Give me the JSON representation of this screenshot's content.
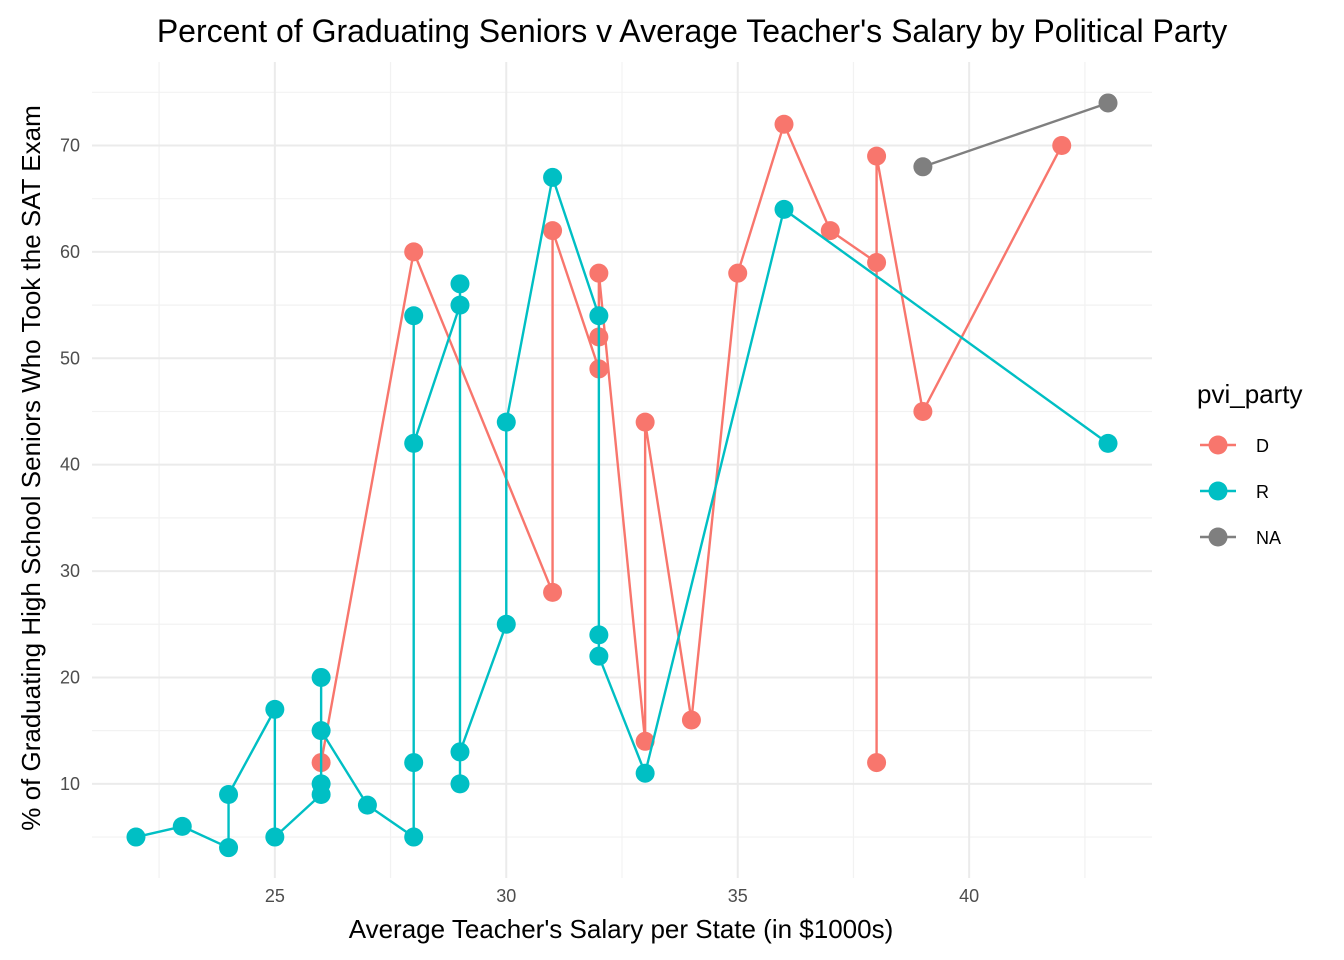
{
  "chart_data": {
    "type": "line",
    "title": "Percent of Graduating Seniors v Average Teacher's Salary by Political Party",
    "xlabel": "Average Teacher's Salary per State (in $1000s)",
    "ylabel": "% of Graduating High School Seniors Who Took the SAT Exam",
    "xlim": [
      21.05,
      43.95
    ],
    "ylim": [
      1.15,
      77.85
    ],
    "x_ticks": [
      25,
      30,
      35,
      40
    ],
    "y_ticks": [
      10,
      20,
      30,
      40,
      50,
      60,
      70
    ],
    "grid": true,
    "markers": true,
    "legend": {
      "title": "pvi_party",
      "position": "right"
    },
    "series": [
      {
        "name": "D",
        "color": "#F8766D",
        "points": [
          [
            26,
            12
          ],
          [
            28,
            60
          ],
          [
            31,
            28
          ],
          [
            31,
            62
          ],
          [
            32,
            49
          ],
          [
            32,
            52
          ],
          [
            32,
            58
          ],
          [
            33,
            14
          ],
          [
            33,
            44
          ],
          [
            34,
            16
          ],
          [
            35,
            58
          ],
          [
            36,
            72
          ],
          [
            37,
            62
          ],
          [
            38,
            59
          ],
          [
            38,
            12
          ],
          [
            38,
            69
          ],
          [
            39,
            45
          ],
          [
            42,
            70
          ]
        ]
      },
      {
        "name": "R",
        "color": "#00BFC4",
        "points": [
          [
            22,
            5
          ],
          [
            23,
            6
          ],
          [
            24,
            4
          ],
          [
            24,
            9
          ],
          [
            25,
            17
          ],
          [
            25,
            5
          ],
          [
            26,
            9
          ],
          [
            26,
            10
          ],
          [
            26,
            20
          ],
          [
            26,
            15
          ],
          [
            27,
            8
          ],
          [
            28,
            5
          ],
          [
            28,
            12
          ],
          [
            28,
            54
          ],
          [
            28,
            42
          ],
          [
            29,
            55
          ],
          [
            29,
            57
          ],
          [
            29,
            10
          ],
          [
            29,
            13
          ],
          [
            30,
            25
          ],
          [
            30,
            44
          ],
          [
            31,
            67
          ],
          [
            32,
            54
          ],
          [
            32,
            24
          ],
          [
            32,
            22
          ],
          [
            33,
            11
          ],
          [
            36,
            64
          ],
          [
            43,
            42
          ]
        ]
      },
      {
        "name": "NA",
        "color": "#7F7F7F",
        "points": [
          [
            39,
            68
          ],
          [
            43,
            74
          ]
        ]
      }
    ]
  }
}
